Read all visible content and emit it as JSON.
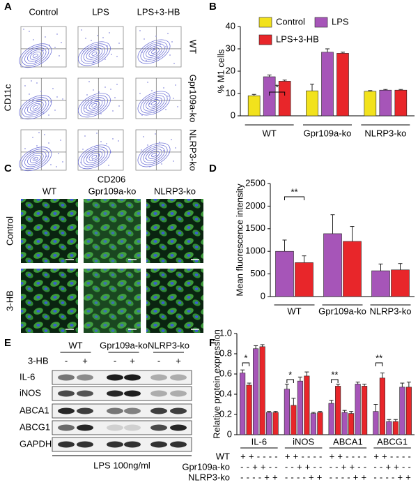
{
  "panel_labels": [
    "A",
    "B",
    "C",
    "D",
    "E",
    "F"
  ],
  "panel_a": {
    "columns": [
      "Control",
      "LPS",
      "LPS+3-HB"
    ],
    "rows": [
      "WT",
      "Gpr109a-ko",
      "NLRP3-ko"
    ],
    "y_label": "CD11c"
  },
  "panel_c": {
    "marker": "CD206",
    "columns": [
      "WT",
      "Gpr109a-ko",
      "NLRP3-ko"
    ],
    "rows": [
      "Control",
      "3-HB"
    ]
  },
  "panel_e": {
    "groups": [
      "WT",
      "Gpr109a-ko",
      "NLRP3-ko"
    ],
    "treatment": "3-HB",
    "lanes": [
      "-",
      "+",
      "-",
      "+",
      "-",
      "+"
    ],
    "proteins": [
      "IL-6",
      "iNOS",
      "ABCA1",
      "ABCG1",
      "GAPDH"
    ],
    "footer": "LPS 100ng/ml"
  },
  "chart_data": [
    {
      "type": "bar",
      "ylabel": "% M1 cells",
      "categories": [
        "WT",
        "Gpr109a-ko",
        "NLRP3-ko"
      ],
      "series": [
        {
          "name": "Control",
          "color": "#f2e21c",
          "values": [
            9,
            11.2,
            11
          ],
          "errors": [
            0.6,
            3,
            0.3
          ]
        },
        {
          "name": "LPS",
          "color": "#a655b8",
          "values": [
            17.5,
            28.5,
            11.5
          ],
          "errors": [
            0.8,
            1.5,
            0.3
          ]
        },
        {
          "name": "LPS+3-HB",
          "color": "#e8262a",
          "values": [
            15.5,
            28,
            11.5
          ],
          "errors": [
            0.5,
            0.5,
            0.3
          ]
        }
      ],
      "ylim": [
        0,
        40
      ],
      "yticks": [
        0,
        10,
        20,
        30,
        40
      ],
      "annotations": [
        "*"
      ]
    },
    {
      "type": "bar",
      "ylabel": "Mean fluorescence intensity",
      "categories": [
        "WT",
        "Gpr109a-ko",
        "NLRP3-ko"
      ],
      "series": [
        {
          "color": "#a655b8",
          "values": [
            1000,
            1390,
            570
          ],
          "errors": [
            250,
            420,
            150
          ]
        },
        {
          "color": "#e8262a",
          "values": [
            750,
            1220,
            590
          ],
          "errors": [
            150,
            330,
            140
          ]
        }
      ],
      "ylim": [
        0,
        2500
      ],
      "yticks": [
        0,
        500,
        1000,
        1500,
        2000,
        2500
      ],
      "annotations": [
        "**"
      ]
    },
    {
      "type": "bar",
      "ylabel": "Relative protein expression",
      "categories": [
        "IL-6",
        "iNOS",
        "ABCA1",
        "ABCG1"
      ],
      "series": [
        {
          "color": "#a655b8",
          "values": [
            0.61,
            0.45,
            0.31,
            0.23
          ],
          "errors": [
            0.03,
            0.05,
            0.03,
            0.07
          ]
        },
        {
          "color": "#e8262a",
          "values": [
            0.49,
            0.29,
            0.48,
            0.56
          ],
          "errors": [
            0.02,
            0.07,
            0.02,
            0.05
          ]
        },
        {
          "color": "#a655b8",
          "values": [
            0.85,
            0.53,
            0.22,
            0.13
          ],
          "errors": [
            0.03,
            0.04,
            0.02,
            0.02
          ]
        },
        {
          "color": "#e8262a",
          "values": [
            0.87,
            0.58,
            0.21,
            0.13
          ],
          "errors": [
            0.02,
            0.04,
            0.02,
            0.02
          ]
        },
        {
          "color": "#a655b8",
          "values": [
            0.22,
            0.21,
            0.5,
            0.47
          ],
          "errors": [
            0.01,
            0.01,
            0.02,
            0.04
          ]
        },
        {
          "color": "#e8262a",
          "values": [
            0.22,
            0.22,
            0.48,
            0.47
          ],
          "errors": [
            0.01,
            0.01,
            0.02,
            0.05
          ]
        }
      ],
      "ylim": [
        0,
        1
      ],
      "yticks": [
        0,
        0.2,
        0.4,
        0.6,
        0.8,
        {
          "value": 1,
          "label": "1.0"
        }
      ],
      "annotations": [
        "*",
        "*",
        "**",
        "**"
      ],
      "conditions": [
        {
          "label": "WT",
          "signs": [
            "++----",
            "++----",
            "++----",
            "++----"
          ]
        },
        {
          "label": "Gpr109a-ko",
          "signs": [
            "--++--",
            "--++--",
            "--++--",
            "--++--"
          ]
        },
        {
          "label": "NLRP3-ko",
          "signs": [
            "----++",
            "----++",
            "----++",
            "----++"
          ]
        }
      ]
    }
  ]
}
